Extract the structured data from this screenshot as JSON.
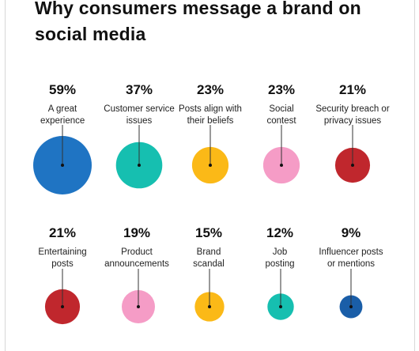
{
  "colors": {
    "blue": "#1f74c3",
    "teal": "#16bfb0",
    "yellow": "#fbb917",
    "pink": "#f59cc6",
    "red": "#c0272d",
    "navy": "#1a5ea8",
    "stem": "#333333"
  },
  "chart_data": {
    "type": "bubble",
    "title": "Why consumers message a brand on social media",
    "unit": "%",
    "items": [
      {
        "label": "A great experience",
        "value": 59,
        "display": "59%",
        "color": "blue"
      },
      {
        "label": "Customer service issues",
        "value": 37,
        "display": "37%",
        "color": "teal"
      },
      {
        "label": "Posts align with their beliefs",
        "value": 23,
        "display": "23%",
        "color": "yellow"
      },
      {
        "label": "Social contest",
        "value": 23,
        "display": "23%",
        "color": "pink"
      },
      {
        "label": "Security breach or privacy issues",
        "value": 21,
        "display": "21%",
        "color": "red"
      },
      {
        "label": "Entertaining posts",
        "value": 21,
        "display": "21%",
        "color": "red"
      },
      {
        "label": "Product announcements",
        "value": 19,
        "display": "19%",
        "color": "pink"
      },
      {
        "label": "Brand scandal",
        "value": 15,
        "display": "15%",
        "color": "yellow"
      },
      {
        "label": "Job posting",
        "value": 12,
        "display": "12%",
        "color": "teal"
      },
      {
        "label": "Influencer posts or mentions",
        "value": 9,
        "display": "9%",
        "color": "navy"
      }
    ]
  }
}
